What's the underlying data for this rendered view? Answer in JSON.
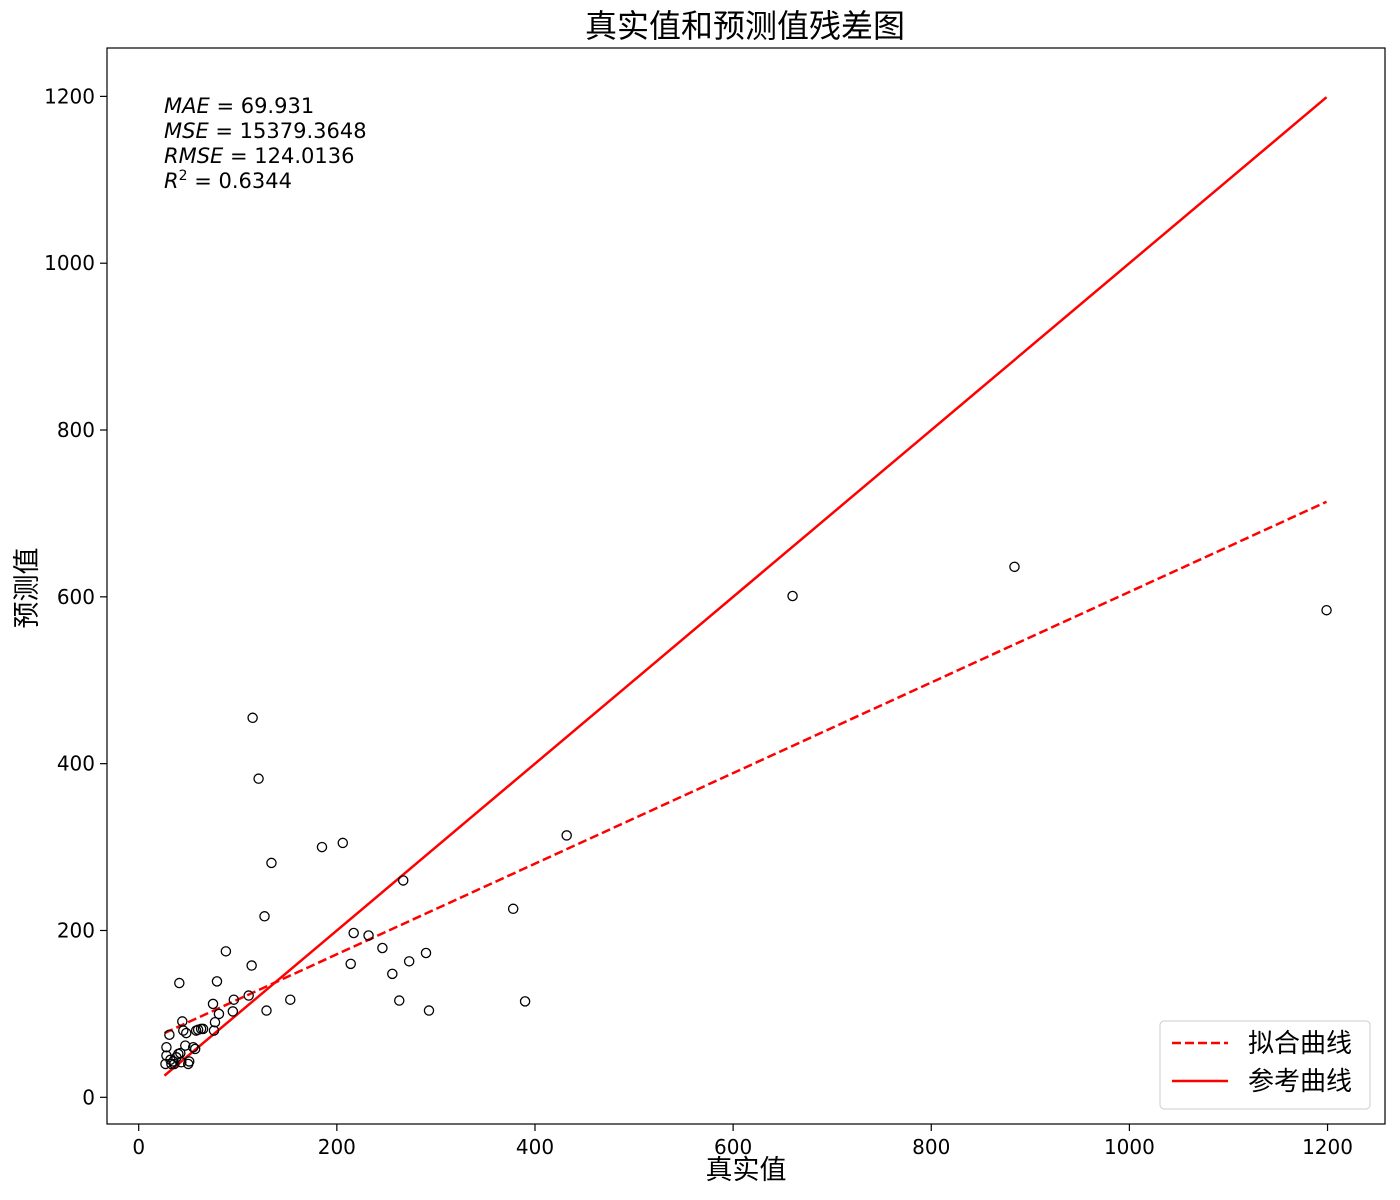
{
  "chart_data": {
    "type": "scatter",
    "title": "真实值和预测值残差图",
    "xlabel": "真实值",
    "ylabel": "预测值",
    "xlim": [
      -32,
      1258
    ],
    "ylim": [
      -32,
      1258
    ],
    "x_ticks": [
      0,
      200,
      400,
      600,
      800,
      1000,
      1200
    ],
    "y_ticks": [
      0,
      200,
      400,
      600,
      800,
      1000,
      1200
    ],
    "grid": false,
    "legend_position": "lower-right",
    "metrics": [
      {
        "name": "MAE",
        "value": "69.931"
      },
      {
        "name": "MSE",
        "value": "15379.3648"
      },
      {
        "name": "RMSE",
        "value": "124.0136"
      },
      {
        "name": "R",
        "superscript": "2",
        "value": "0.6344"
      }
    ],
    "points": {
      "marker": "open-circle",
      "edge_color": "#000000",
      "x": [
        27,
        28,
        28,
        31,
        32,
        33,
        35,
        36,
        38,
        40,
        41,
        42,
        43,
        44,
        45,
        47,
        48,
        50,
        51,
        55,
        57,
        58,
        60,
        63,
        65,
        75,
        76,
        77,
        79,
        81,
        88,
        95,
        96,
        111,
        114,
        115,
        121,
        127,
        129,
        134,
        153,
        185,
        206,
        214,
        217,
        232,
        246,
        256,
        263,
        267,
        273,
        290,
        293,
        378,
        390,
        432,
        660,
        884,
        1199
      ],
      "y": [
        40,
        50,
        60,
        75,
        45,
        40,
        43,
        40,
        48,
        52,
        137,
        53,
        42,
        91,
        80,
        62,
        77,
        40,
        43,
        60,
        58,
        80,
        81,
        82,
        82,
        112,
        80,
        90,
        139,
        100,
        175,
        103,
        117,
        122,
        158,
        455,
        382,
        217,
        104,
        281,
        117,
        300,
        305,
        160,
        197,
        194,
        179,
        148,
        116,
        260,
        163,
        173,
        104,
        226,
        115,
        314,
        601,
        636,
        584
      ]
    },
    "series": [
      {
        "name": "拟合曲线",
        "style": "dashed",
        "color": "#ff0000",
        "x": [
          26,
          1199
        ],
        "y": [
          77,
          714
        ]
      },
      {
        "name": "参考曲线",
        "style": "solid",
        "color": "#ff0000",
        "x": [
          26,
          1199
        ],
        "y": [
          26,
          1199
        ]
      }
    ]
  }
}
